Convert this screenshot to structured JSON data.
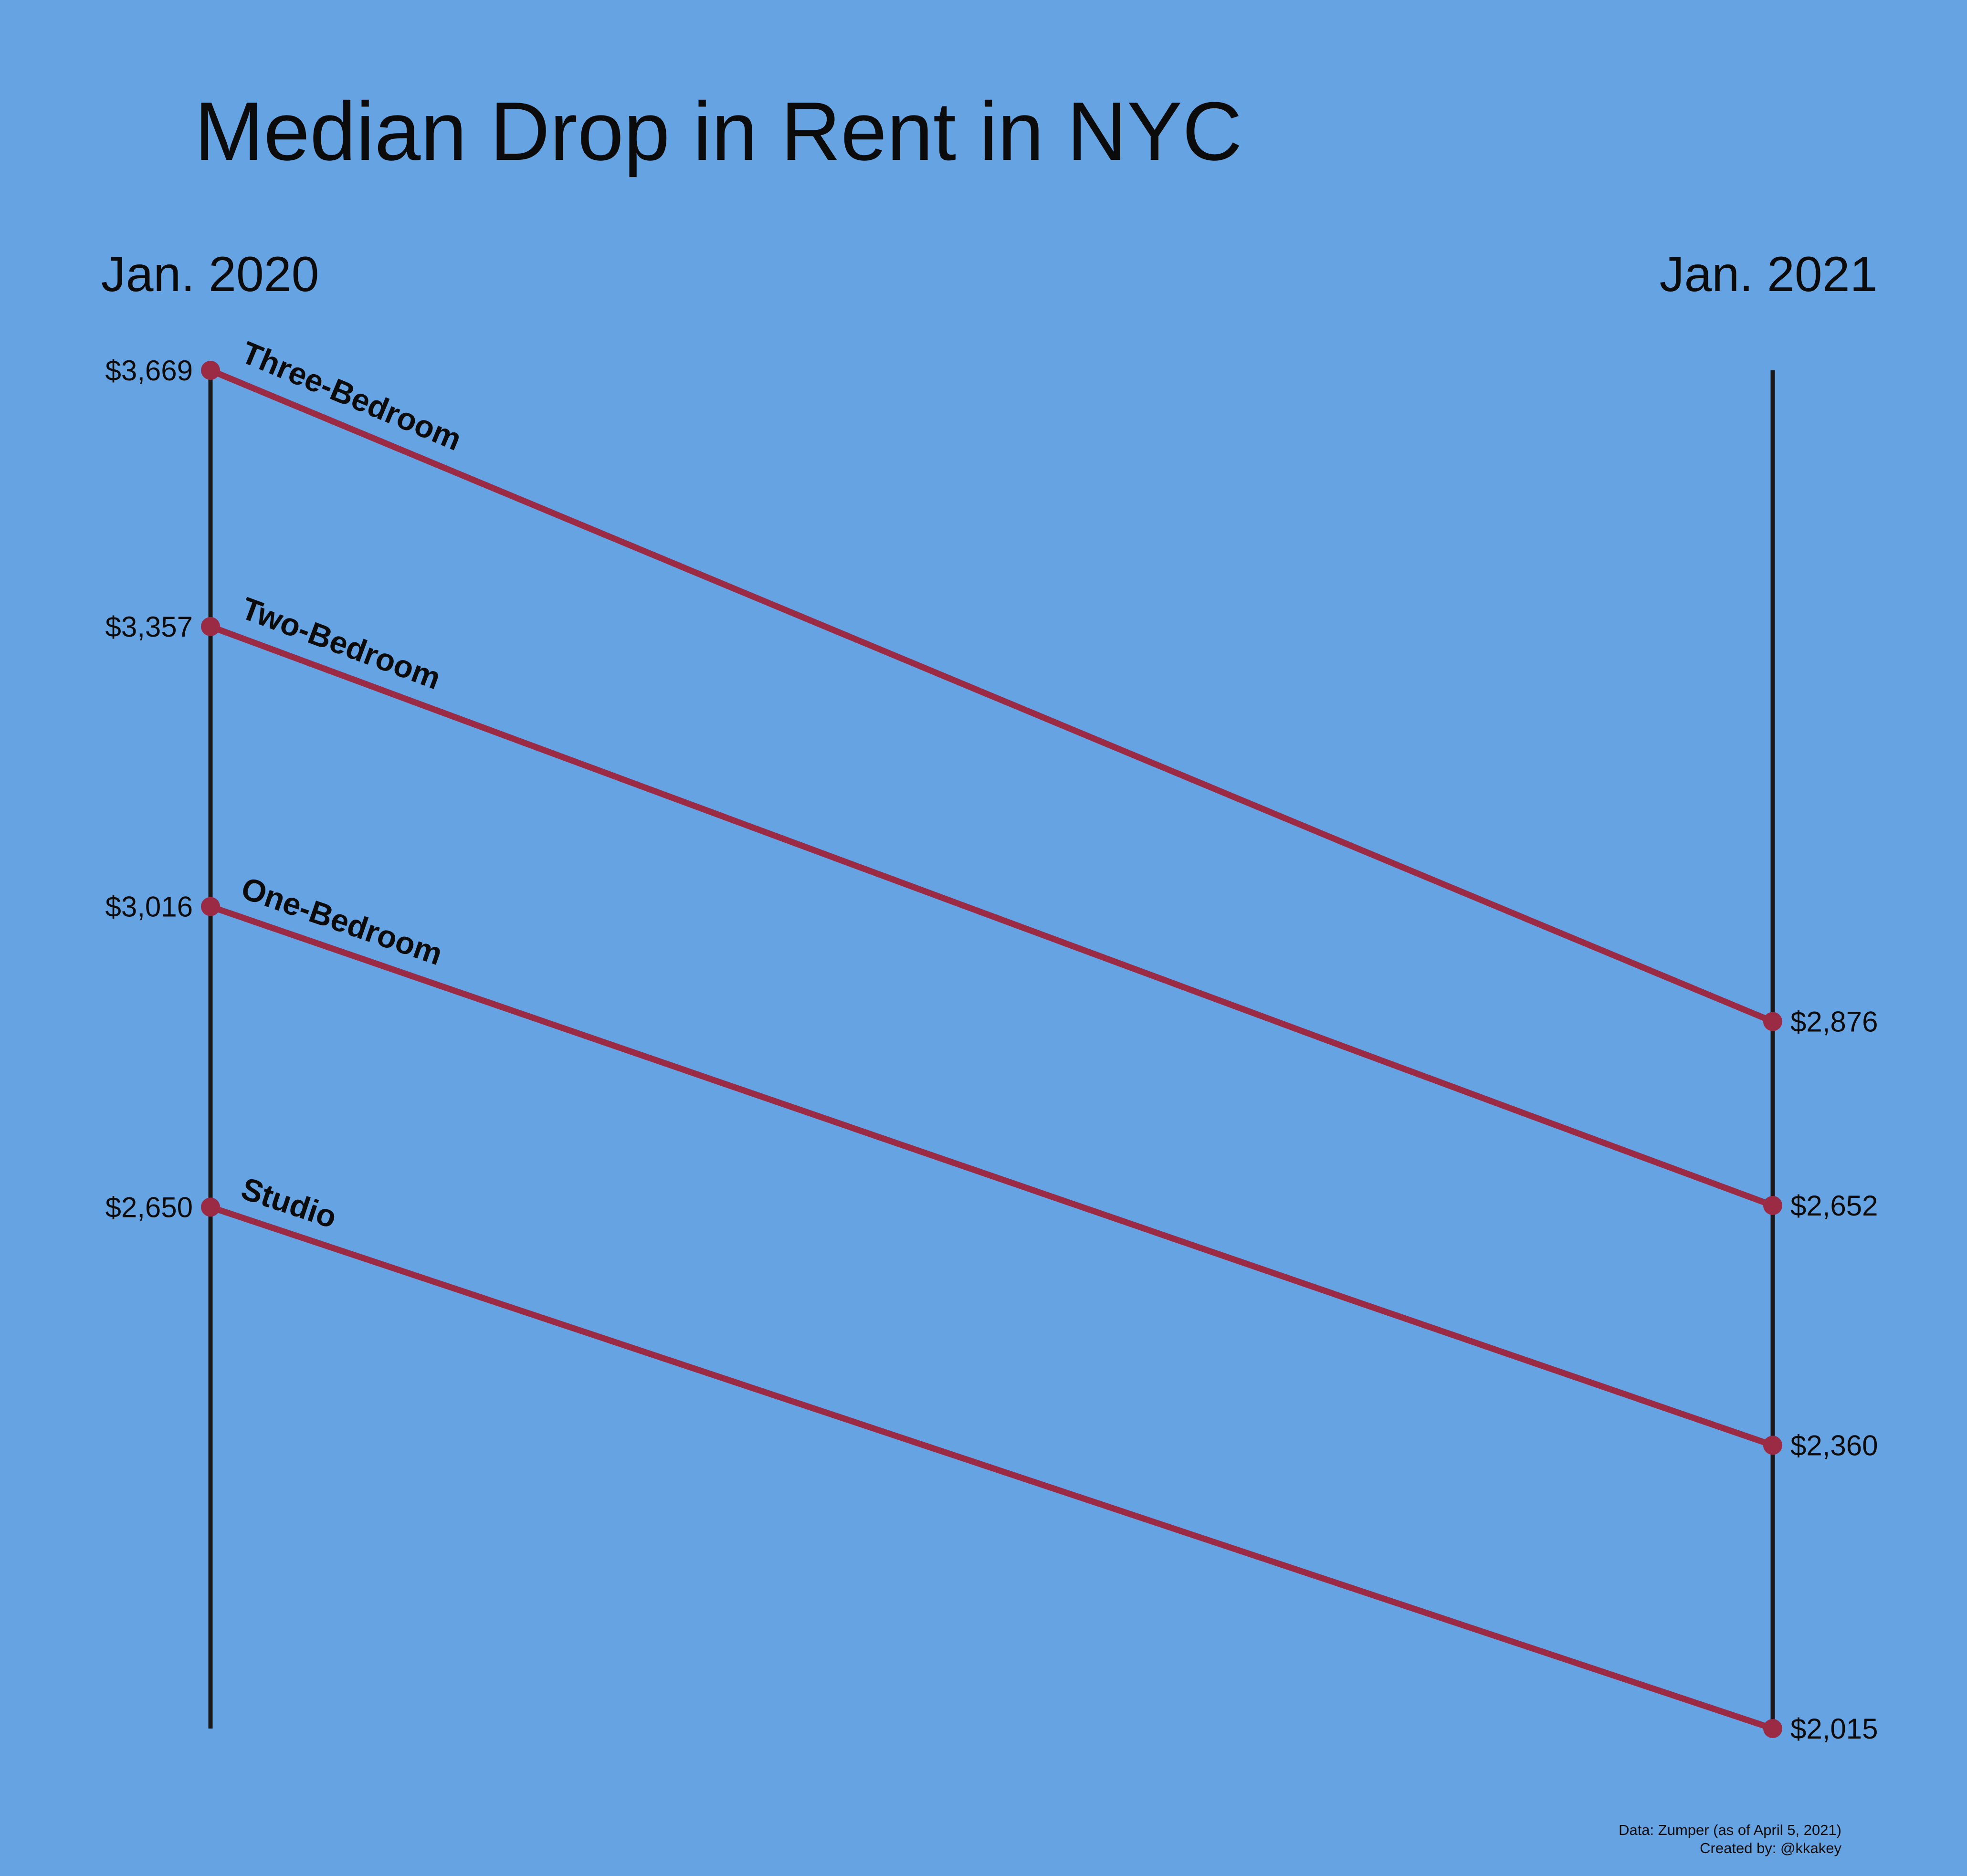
{
  "chart_data": {
    "type": "line",
    "title": "Median Drop in Rent in NYC",
    "x": [
      "Jan. 2020",
      "Jan. 2021"
    ],
    "series": [
      {
        "name": "Three-Bedroom",
        "values": [
          3669,
          2876
        ],
        "labels": [
          "$3,669",
          "$2,876"
        ]
      },
      {
        "name": "Two-Bedroom",
        "values": [
          3357,
          2652
        ],
        "labels": [
          "$3,357",
          "$2,652"
        ]
      },
      {
        "name": "One-Bedroom",
        "values": [
          3016,
          2360
        ],
        "labels": [
          "$3,016",
          "$2,360"
        ]
      },
      {
        "name": "Studio",
        "values": [
          2650,
          2015
        ],
        "labels": [
          "$2,650",
          "$2,015"
        ]
      }
    ],
    "grid": false,
    "legend": "none",
    "line_color": "#9b2a45",
    "axis_color": "#1a1a1a",
    "background": "#66a3e2"
  },
  "footer": {
    "source": "Data: Zumper (as of April 5, 2021)",
    "credit": "Created by: @kkakey"
  }
}
